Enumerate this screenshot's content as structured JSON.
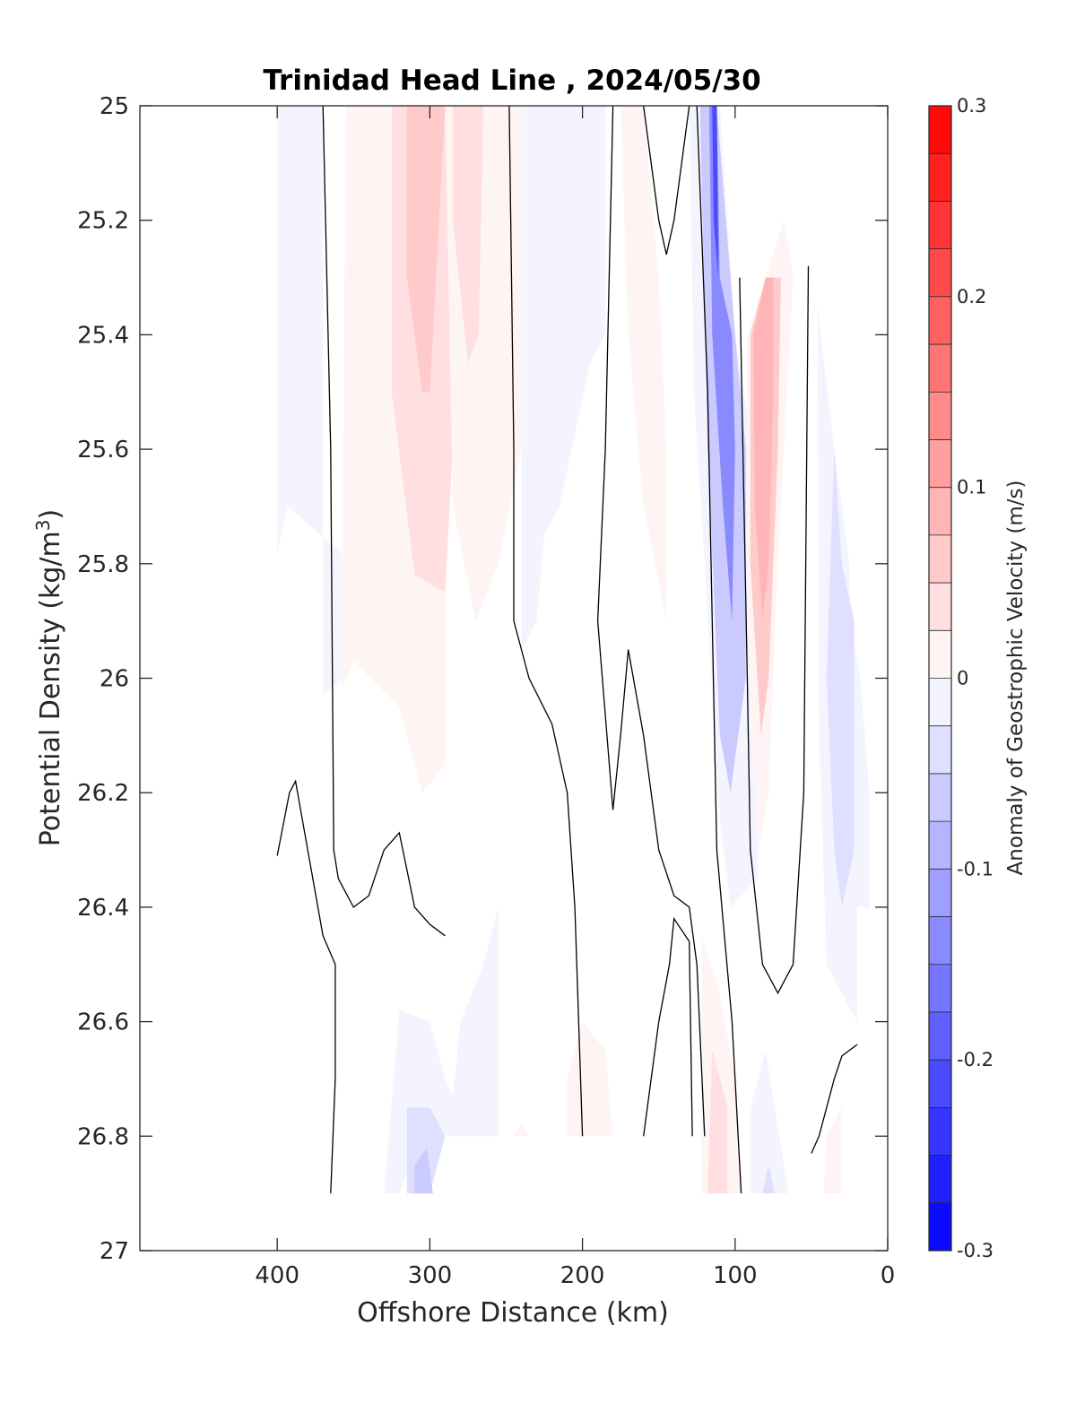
{
  "chart_data": {
    "type": "heatmap",
    "title": "Trinidad Head Line , 2024/05/30",
    "xlabel": "Offshore Distance (km)",
    "ylabel_main": "Potential Density (kg/m",
    "ylabel_sup": "3",
    "ylabel_close": ")",
    "colorbar_label": "Anomaly of Geostrophic Velocity (m/s)",
    "xlim": [
      490,
      0
    ],
    "ylim": [
      25,
      27
    ],
    "y_reversed": true,
    "x_reversed": true,
    "grid": false,
    "xticks": [
      400,
      300,
      200,
      100,
      0
    ],
    "xtick_labels": [
      "400",
      "300",
      "200",
      "100",
      "0"
    ],
    "yticks": [
      25,
      25.2,
      25.4,
      25.6,
      25.8,
      26,
      26.2,
      26.4,
      26.6,
      26.8,
      27
    ],
    "ytick_labels": [
      "25",
      "25.2",
      "25.4",
      "25.6",
      "25.8",
      "26",
      "26.2",
      "26.4",
      "26.6",
      "26.8",
      "27"
    ],
    "colorbar": {
      "range": [
        -0.3,
        0.3
      ],
      "levels": 24,
      "ticks": [
        0.3,
        0.2,
        0.1,
        0,
        -0.1,
        -0.2,
        -0.3
      ],
      "tick_labels": [
        "0.3",
        "0.2",
        "0.1",
        "0",
        "-0.1",
        "-0.2",
        "-0.3"
      ],
      "colormap": "blue-white-red",
      "low_color": "#0000ff",
      "high_color": "#ff0000"
    },
    "regions": [
      {
        "sign": "neg",
        "level": 1,
        "points": [
          [
            400,
            25
          ],
          [
            370,
            25
          ],
          [
            370,
            26.03
          ],
          [
            357,
            26.0
          ],
          [
            350,
            25.8
          ],
          [
            393,
            25.7
          ],
          [
            400,
            25.78
          ]
        ]
      },
      {
        "sign": "pos",
        "level": 1,
        "points": [
          [
            355,
            25
          ],
          [
            290,
            25
          ],
          [
            290,
            26.15
          ],
          [
            305,
            26.2
          ],
          [
            320,
            26.05
          ],
          [
            350,
            25.97
          ],
          [
            358,
            26.02
          ]
        ]
      },
      {
        "sign": "pos",
        "level": 2,
        "points": [
          [
            325,
            25
          ],
          [
            280,
            25
          ],
          [
            285,
            25.6
          ],
          [
            290,
            25.85
          ],
          [
            310,
            25.82
          ],
          [
            325,
            25.5
          ]
        ]
      },
      {
        "sign": "pos",
        "level": 3,
        "points": [
          [
            315,
            25
          ],
          [
            290,
            25
          ],
          [
            300,
            25.5
          ],
          [
            305,
            25.5
          ],
          [
            315,
            25.3
          ]
        ]
      },
      {
        "sign": "pos",
        "level": 1,
        "points": [
          [
            290,
            25
          ],
          [
            235,
            25
          ],
          [
            240,
            25.6
          ],
          [
            255,
            25.8
          ],
          [
            270,
            25.9
          ],
          [
            285,
            25.7
          ]
        ]
      },
      {
        "sign": "pos",
        "level": 2,
        "points": [
          [
            285,
            25
          ],
          [
            265,
            25
          ],
          [
            268,
            25.4
          ],
          [
            275,
            25.45
          ],
          [
            285,
            25.2
          ]
        ]
      },
      {
        "sign": "neg",
        "level": 1,
        "points": [
          [
            240,
            25
          ],
          [
            185,
            25
          ],
          [
            185,
            25.4
          ],
          [
            195,
            25.45
          ],
          [
            215,
            25.7
          ],
          [
            225,
            25.75
          ],
          [
            230,
            25.9
          ],
          [
            240,
            25.95
          ]
        ]
      },
      {
        "sign": "pos",
        "level": 1,
        "points": [
          [
            175,
            25
          ],
          [
            160,
            25
          ],
          [
            150,
            25.3
          ],
          [
            145,
            25.6
          ],
          [
            145,
            25.9
          ],
          [
            160,
            25.7
          ],
          [
            170,
            25.4
          ]
        ]
      },
      {
        "sign": "neg",
        "level": 1,
        "points": [
          [
            130,
            25
          ],
          [
            110,
            25
          ],
          [
            100,
            25.4
          ],
          [
            88,
            25.6
          ],
          [
            85,
            26.35
          ],
          [
            103,
            26.4
          ],
          [
            110,
            26.25
          ],
          [
            120,
            25.8
          ],
          [
            127,
            25.5
          ]
        ]
      },
      {
        "sign": "neg",
        "level": 3,
        "points": [
          [
            123,
            25
          ],
          [
            112,
            25
          ],
          [
            100,
            25.4
          ],
          [
            93,
            25.6
          ],
          [
            93,
            26.0
          ],
          [
            103,
            26.2
          ],
          [
            110,
            26.1
          ],
          [
            118,
            25.6
          ]
        ]
      },
      {
        "sign": "neg",
        "level": 6,
        "points": [
          [
            117,
            25
          ],
          [
            112,
            25
          ],
          [
            110,
            25.3
          ],
          [
            102,
            25.4
          ],
          [
            100,
            25.6
          ],
          [
            102,
            25.9
          ],
          [
            108,
            25.7
          ],
          [
            115,
            25.4
          ]
        ]
      },
      {
        "sign": "neg",
        "level": 9,
        "points": [
          [
            115,
            25
          ],
          [
            112,
            25
          ],
          [
            111,
            25.3
          ],
          [
            114,
            25.2
          ]
        ]
      },
      {
        "sign": "pos",
        "level": 1,
        "points": [
          [
            68,
            25.2
          ],
          [
            80,
            25.3
          ],
          [
            92,
            25.4
          ],
          [
            92,
            25.9
          ],
          [
            85,
            26.3
          ],
          [
            78,
            26.2
          ],
          [
            72,
            25.8
          ],
          [
            62,
            25.3
          ]
        ]
      },
      {
        "sign": "pos",
        "level": 3,
        "points": [
          [
            70,
            25.3
          ],
          [
            80,
            25.3
          ],
          [
            90,
            25.4
          ],
          [
            90,
            25.8
          ],
          [
            83,
            26.1
          ],
          [
            78,
            26.0
          ],
          [
            72,
            25.6
          ]
        ]
      },
      {
        "sign": "pos",
        "level": 4,
        "points": [
          [
            75,
            25.3
          ],
          [
            80,
            25.3
          ],
          [
            88,
            25.4
          ],
          [
            87,
            25.7
          ],
          [
            82,
            25.9
          ],
          [
            78,
            25.8
          ],
          [
            75,
            25.5
          ]
        ]
      },
      {
        "sign": "neg",
        "level": 1,
        "points": [
          [
            46,
            25.35
          ],
          [
            35,
            25.6
          ],
          [
            25,
            25.8
          ],
          [
            25,
            25.9
          ],
          [
            18,
            26.0
          ],
          [
            12,
            26.2
          ],
          [
            12,
            26.4
          ],
          [
            20,
            26.4
          ],
          [
            20,
            26.6
          ],
          [
            30,
            26.55
          ],
          [
            40,
            26.5
          ],
          [
            45,
            26.1
          ]
        ]
      },
      {
        "sign": "neg",
        "level": 2,
        "points": [
          [
            35,
            25.6
          ],
          [
            30,
            25.8
          ],
          [
            22,
            25.9
          ],
          [
            22,
            26.3
          ],
          [
            30,
            26.4
          ],
          [
            35,
            26.3
          ],
          [
            40,
            26.0
          ]
        ]
      },
      {
        "sign": "neg",
        "level": 1,
        "points": [
          [
            320,
            26.58
          ],
          [
            300,
            26.6
          ],
          [
            290,
            26.7
          ],
          [
            285,
            26.73
          ],
          [
            280,
            26.6
          ],
          [
            265,
            26.5
          ],
          [
            255,
            26.4
          ],
          [
            255,
            26.8
          ],
          [
            305,
            26.8
          ],
          [
            320,
            26.9
          ],
          [
            330,
            26.9
          ]
        ]
      },
      {
        "sign": "neg",
        "level": 2,
        "points": [
          [
            315,
            26.75
          ],
          [
            300,
            26.75
          ],
          [
            290,
            26.8
          ],
          [
            300,
            26.9
          ],
          [
            315,
            26.9
          ]
        ]
      },
      {
        "sign": "neg",
        "level": 3,
        "points": [
          [
            310,
            26.85
          ],
          [
            302,
            26.82
          ],
          [
            298,
            26.9
          ],
          [
            310,
            26.9
          ]
        ]
      },
      {
        "sign": "pos",
        "level": 1,
        "points": [
          [
            210,
            26.8
          ],
          [
            180,
            26.8
          ],
          [
            185,
            26.65
          ],
          [
            200,
            26.6
          ],
          [
            210,
            26.7
          ]
        ]
      },
      {
        "sign": "pos",
        "level": 1,
        "points": [
          [
            245,
            26.8
          ],
          [
            235,
            26.8
          ],
          [
            240,
            26.78
          ]
        ]
      },
      {
        "sign": "pos",
        "level": 1,
        "points": [
          [
            122,
            26.45
          ],
          [
            110,
            26.55
          ],
          [
            100,
            26.7
          ],
          [
            95,
            26.9
          ],
          [
            122,
            26.9
          ]
        ]
      },
      {
        "sign": "pos",
        "level": 2,
        "points": [
          [
            115,
            26.65
          ],
          [
            105,
            26.75
          ],
          [
            105,
            26.9
          ],
          [
            118,
            26.9
          ]
        ]
      },
      {
        "sign": "neg",
        "level": 1,
        "points": [
          [
            90,
            26.9
          ],
          [
            90,
            26.75
          ],
          [
            80,
            26.65
          ],
          [
            65,
            26.9
          ]
        ]
      },
      {
        "sign": "neg",
        "level": 2,
        "points": [
          [
            82,
            26.9
          ],
          [
            78,
            26.85
          ],
          [
            74,
            26.9
          ]
        ]
      },
      {
        "sign": "pos",
        "level": 1,
        "points": [
          [
            42,
            26.9
          ],
          [
            30,
            26.9
          ],
          [
            30,
            26.75
          ],
          [
            40,
            26.8
          ]
        ]
      }
    ],
    "contours": [
      [
        [
          370,
          25
        ],
        [
          365,
          25.6
        ],
        [
          363,
          26.3
        ],
        [
          360,
          26.35
        ],
        [
          350,
          26.4
        ],
        [
          340,
          26.38
        ],
        [
          330,
          26.3
        ],
        [
          320,
          26.27
        ],
        [
          310,
          26.4
        ],
        [
          300,
          26.43
        ],
        [
          290,
          26.45
        ]
      ],
      [
        [
          400,
          26.31
        ],
        [
          392,
          26.2
        ],
        [
          388,
          26.18
        ],
        [
          380,
          26.3
        ],
        [
          370,
          26.45
        ],
        [
          362,
          26.5
        ],
        [
          362,
          26.7
        ],
        [
          365,
          26.9
        ]
      ],
      [
        [
          248,
          25
        ],
        [
          245,
          25.6
        ],
        [
          245,
          25.9
        ],
        [
          235,
          26.0
        ],
        [
          220,
          26.08
        ],
        [
          210,
          26.2
        ],
        [
          205,
          26.4
        ],
        [
          200,
          26.8
        ]
      ],
      [
        [
          180,
          25
        ],
        [
          185,
          25.6
        ],
        [
          190,
          25.9
        ],
        [
          180,
          26.23
        ],
        [
          175,
          26.1
        ],
        [
          170,
          25.95
        ],
        [
          160,
          26.1
        ],
        [
          150,
          26.3
        ],
        [
          140,
          26.38
        ],
        [
          130,
          26.4
        ],
        [
          125,
          26.5
        ],
        [
          120,
          26.8
        ]
      ],
      [
        [
          160,
          25
        ],
        [
          155,
          25.1
        ],
        [
          150,
          25.2
        ],
        [
          145,
          25.26
        ],
        [
          140,
          25.2
        ],
        [
          135,
          25.1
        ],
        [
          130,
          25
        ]
      ],
      [
        [
          160,
          26.8
        ],
        [
          155,
          26.7
        ],
        [
          150,
          26.6
        ],
        [
          143,
          26.5
        ],
        [
          140,
          26.42
        ],
        [
          130,
          26.46
        ],
        [
          128,
          26.8
        ]
      ],
      [
        [
          125,
          25
        ],
        [
          118,
          25.5
        ],
        [
          112,
          26.3
        ],
        [
          102,
          26.6
        ],
        [
          96,
          26.9
        ]
      ],
      [
        [
          97,
          25.3
        ],
        [
          92,
          26.0
        ],
        [
          90,
          26.3
        ],
        [
          82,
          26.5
        ],
        [
          72,
          26.55
        ],
        [
          62,
          26.5
        ],
        [
          55,
          26.2
        ],
        [
          52,
          25.28
        ]
      ],
      [
        [
          20,
          26.64
        ],
        [
          25,
          26.65
        ],
        [
          30,
          26.66
        ],
        [
          35,
          26.7
        ],
        [
          45,
          26.8
        ],
        [
          50,
          26.83
        ]
      ]
    ]
  }
}
